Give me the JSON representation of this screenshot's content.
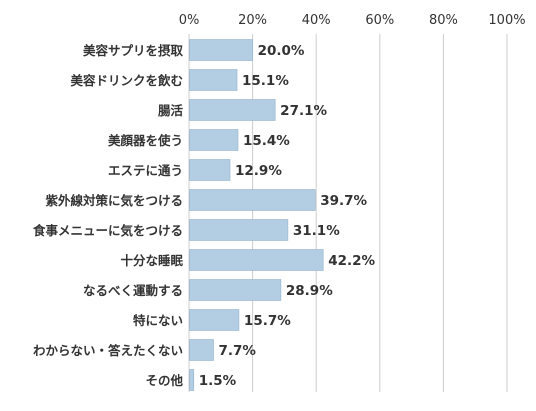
{
  "chart_data": {
    "type": "bar",
    "orientation": "horizontal",
    "categories": [
      "美容サプリを摂取",
      "美容ドリンクを飲む",
      "腸活",
      "美顔器を使う",
      "エステに通う",
      "紫外線対策に気をつける",
      "食事メニューに気をつける",
      "十分な睡眠",
      "なるべく運動する",
      "特にない",
      "わからない・答えたくない",
      "その他"
    ],
    "values": [
      20.0,
      15.1,
      27.1,
      15.4,
      12.9,
      39.7,
      31.1,
      42.2,
      28.9,
      15.7,
      7.7,
      1.5
    ],
    "value_labels": [
      "20.0%",
      "15.1%",
      "27.1%",
      "15.4%",
      "12.9%",
      "39.7%",
      "31.1%",
      "42.2%",
      "28.9%",
      "15.7%",
      "7.7%",
      "1.5%"
    ],
    "x_ticks": [
      0,
      20,
      40,
      60,
      80,
      100
    ],
    "x_tick_labels": [
      "0%",
      "20%",
      "40%",
      "60%",
      "80%",
      "100%"
    ],
    "xlim": [
      0,
      100
    ],
    "grid": true,
    "bar_color": "#b3cde3",
    "bar_border_color": "#93b3cf",
    "grid_color": "#cccccc"
  }
}
